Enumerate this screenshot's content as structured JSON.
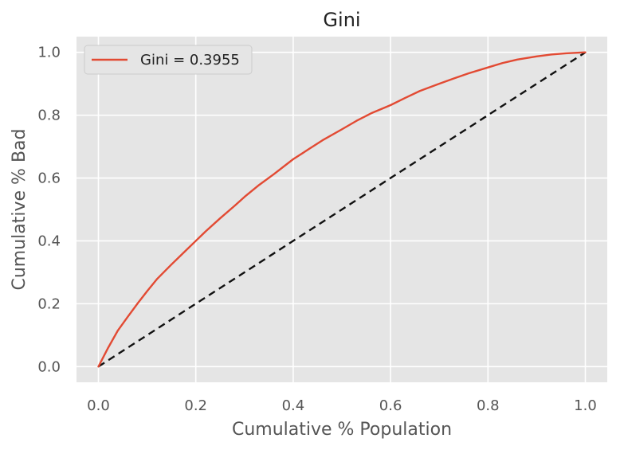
{
  "chart_data": {
    "type": "line",
    "title": "Gini",
    "xlabel": "Cumulative % Population",
    "ylabel": "Cumulative % Bad",
    "xlim": [
      -0.045,
      1.045
    ],
    "ylim": [
      -0.05,
      1.05
    ],
    "x_ticks": [
      0.0,
      0.2,
      0.4,
      0.6,
      0.8,
      1.0
    ],
    "y_ticks": [
      0.0,
      0.2,
      0.4,
      0.6,
      0.8,
      1.0
    ],
    "x_tick_labels": [
      "0.0",
      "0.2",
      "0.4",
      "0.6",
      "0.8",
      "1.0"
    ],
    "y_tick_labels": [
      "0.0",
      "0.2",
      "0.4",
      "0.6",
      "0.8",
      "1.0"
    ],
    "grid": true,
    "background_color": "#e5e5e5",
    "grid_color": "#ffffff",
    "legend_position": "top-left",
    "series": [
      {
        "name": "Gini = 0.3955",
        "color": "#e24a33",
        "style": "solid",
        "x": [
          0.0,
          0.02,
          0.04,
          0.06,
          0.08,
          0.1,
          0.12,
          0.15,
          0.18,
          0.2,
          0.22,
          0.25,
          0.28,
          0.3,
          0.33,
          0.36,
          0.4,
          0.43,
          0.46,
          0.5,
          0.53,
          0.56,
          0.6,
          0.63,
          0.66,
          0.7,
          0.73,
          0.76,
          0.8,
          0.83,
          0.86,
          0.9,
          0.93,
          0.96,
          1.0
        ],
        "y": [
          0.0,
          0.06,
          0.115,
          0.158,
          0.2,
          0.24,
          0.278,
          0.325,
          0.37,
          0.4,
          0.43,
          0.472,
          0.512,
          0.54,
          0.578,
          0.612,
          0.66,
          0.69,
          0.72,
          0.755,
          0.782,
          0.806,
          0.832,
          0.855,
          0.877,
          0.9,
          0.917,
          0.933,
          0.952,
          0.966,
          0.977,
          0.987,
          0.993,
          0.997,
          1.0
        ]
      },
      {
        "name": "",
        "color": "#111111",
        "style": "dashed",
        "x": [
          0.0,
          1.0
        ],
        "y": [
          0.0,
          1.0
        ]
      }
    ]
  }
}
